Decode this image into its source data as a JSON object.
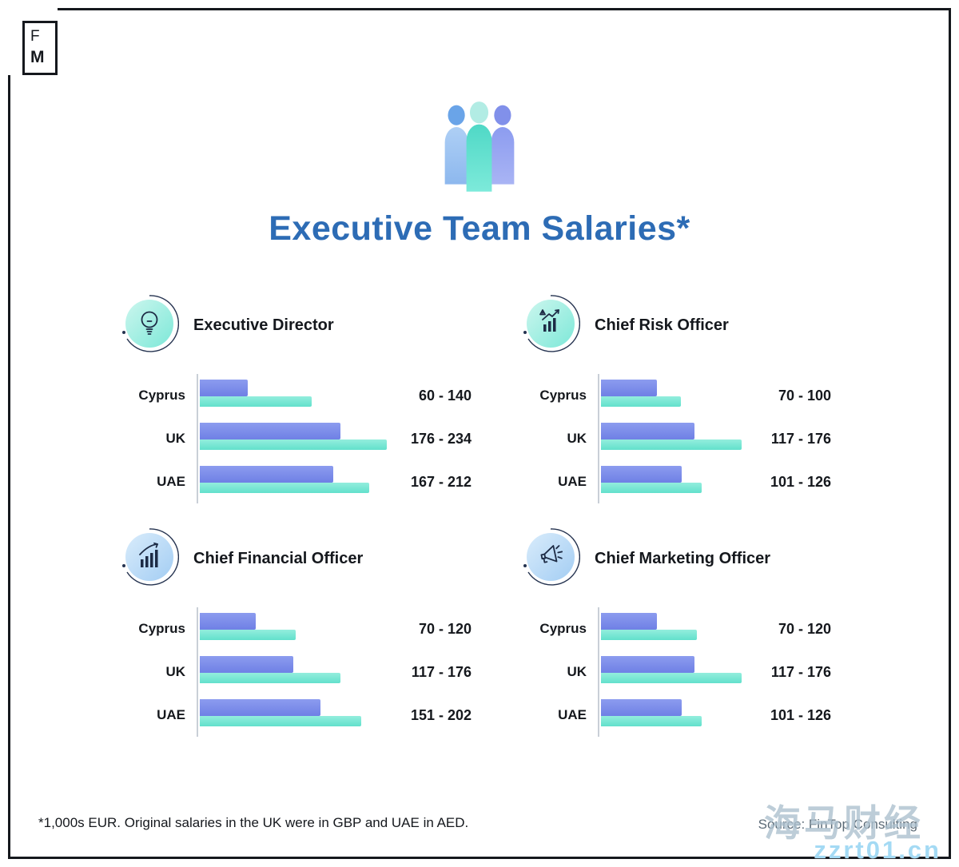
{
  "logo": {
    "letter_top": "F",
    "letter_bottom": "M"
  },
  "header": {
    "icon": "team-icon",
    "title": "Executive Team Salaries*"
  },
  "chart_data": [
    {
      "type": "bar",
      "title": "Executive Director",
      "icon": "lightbulb-icon",
      "categories": [
        "Cyprus",
        "UK",
        "UAE"
      ],
      "series": [
        {
          "name": "min",
          "values": [
            60,
            176,
            167
          ]
        },
        {
          "name": "max",
          "values": [
            140,
            234,
            212
          ]
        }
      ],
      "range_labels": [
        "60 - 140",
        "176 - 234",
        "167 - 212"
      ],
      "xlim": [
        0,
        240
      ],
      "legend": "none",
      "grid": "off"
    },
    {
      "type": "bar",
      "title": "Chief Risk Officer",
      "icon": "risk-chart-icon",
      "categories": [
        "Cyprus",
        "UK",
        "UAE"
      ],
      "series": [
        {
          "name": "min",
          "values": [
            70,
            117,
            101
          ]
        },
        {
          "name": "max",
          "values": [
            100,
            176,
            126
          ]
        }
      ],
      "range_labels": [
        "70 - 100",
        "117 - 176",
        "101 - 126"
      ],
      "xlim": [
        0,
        240
      ],
      "legend": "none",
      "grid": "off"
    },
    {
      "type": "bar",
      "title": "Chief Financial Officer",
      "icon": "bar-chart-growth-icon",
      "categories": [
        "Cyprus",
        "UK",
        "UAE"
      ],
      "series": [
        {
          "name": "min",
          "values": [
            70,
            117,
            151
          ]
        },
        {
          "name": "max",
          "values": [
            120,
            176,
            202
          ]
        }
      ],
      "range_labels": [
        "70 - 120",
        "117 - 176",
        "151 - 202"
      ],
      "xlim": [
        0,
        240
      ],
      "legend": "none",
      "grid": "off"
    },
    {
      "type": "bar",
      "title": "Chief Marketing Officer",
      "icon": "megaphone-icon",
      "categories": [
        "Cyprus",
        "UK",
        "UAE"
      ],
      "series": [
        {
          "name": "min",
          "values": [
            70,
            117,
            101
          ]
        },
        {
          "name": "max",
          "values": [
            120,
            176,
            126
          ]
        }
      ],
      "range_labels": [
        "70 - 120",
        "117 - 176",
        "101 - 126"
      ],
      "xlim": [
        0,
        240
      ],
      "legend": "none",
      "grid": "off"
    }
  ],
  "footer": {
    "note": "*1,000s EUR. Original salaries in the UK were in GBP and UAE in AED.",
    "source": "Source: FinTop Consulting"
  },
  "watermark": {
    "text": "海马财经",
    "url": "zzrt01.cn"
  },
  "colors": {
    "title_blue": "#2d6cb5",
    "bar_min": "#7a8ae8",
    "bar_max": "#79e6d5",
    "icon_circle_teal": "#8feadd",
    "icon_circle_blue": "#a6cdf4"
  }
}
